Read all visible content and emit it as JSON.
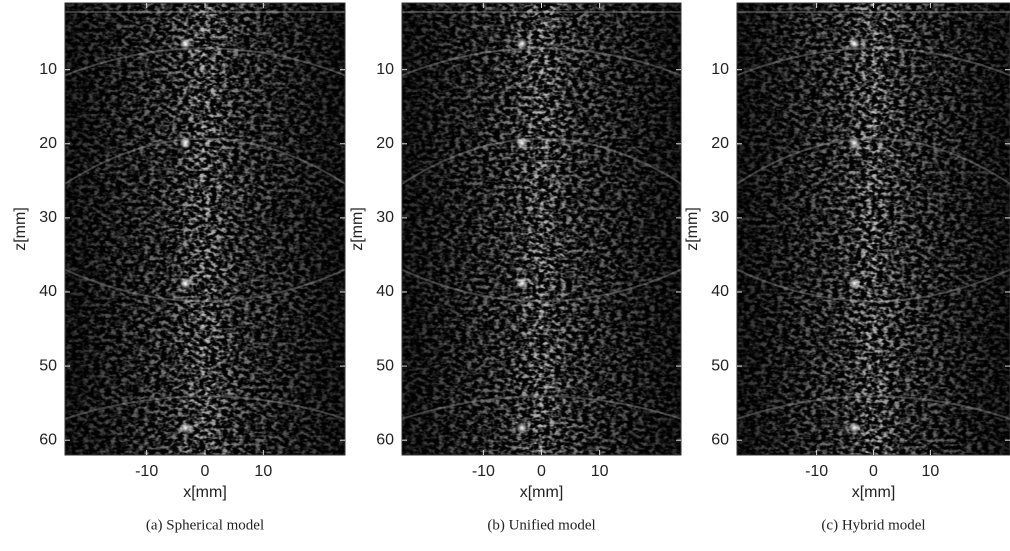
{
  "chart_data": [
    {
      "type": "image",
      "caption": "(a) Spherical model",
      "xlabel": "x[mm]",
      "ylabel": "z[mm]",
      "xlim": [
        -24,
        24
      ],
      "ylim": [
        1,
        62
      ],
      "y_reversed": true,
      "xticks": [
        -10,
        0,
        10
      ],
      "yticks": [
        10,
        20,
        30,
        40,
        50,
        60
      ]
    },
    {
      "type": "image",
      "caption": "(b) Unified model",
      "xlabel": "x[mm]",
      "ylabel": "z[mm]",
      "xlim": [
        -24,
        24
      ],
      "ylim": [
        1,
        62
      ],
      "y_reversed": true,
      "xticks": [
        -10,
        0,
        10
      ],
      "yticks": [
        10,
        20,
        30,
        40,
        50,
        60
      ]
    },
    {
      "type": "image",
      "caption": "(c) Hybrid model",
      "xlabel": "x[mm]",
      "ylabel": "z[mm]",
      "xlim": [
        -24,
        24
      ],
      "ylim": [
        1,
        62
      ],
      "y_reversed": true,
      "xticks": [
        -10,
        0,
        10
      ],
      "yticks": [
        10,
        20,
        30,
        40,
        50,
        60
      ]
    }
  ]
}
